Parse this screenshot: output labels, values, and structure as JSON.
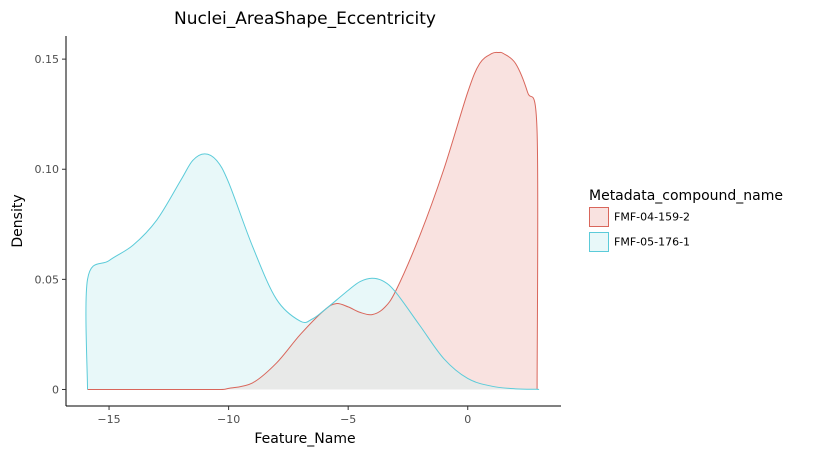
{
  "chart_data": {
    "type": "area",
    "title": "Nuclei_AreaShape_Eccentricity",
    "xlabel": "Feature_Name",
    "ylabel": "Density",
    "xlim": [
      -16.8,
      3.9
    ],
    "ylim": [
      -0.0075,
      0.1605
    ],
    "x_ticks": [
      -15,
      -10,
      -5,
      0
    ],
    "x_tick_labels": [
      "−15",
      "−10",
      "−5",
      "0"
    ],
    "y_ticks": [
      0,
      0.05,
      0.1,
      0.15
    ],
    "y_tick_labels": [
      "0",
      "0.05",
      "0.10",
      "0.15"
    ],
    "grid": false,
    "legend": {
      "title": "Metadata_compound_name",
      "position": "right"
    },
    "series": [
      {
        "name": "FMF-04-159-2",
        "color": "#d9665b",
        "fill": "#f9e2e0",
        "x": [
          -15.9,
          -12,
          -10.4,
          -10,
          -9,
          -8,
          -7,
          -6,
          -5.5,
          -5,
          -4.5,
          -4,
          -3.5,
          -3,
          -2,
          -1,
          0,
          0.5,
          1,
          1.3,
          1.5,
          2,
          2.5,
          2.9,
          2.9
        ],
        "y": [
          0,
          0,
          0,
          0.0005,
          0.003,
          0.012,
          0.025,
          0.036,
          0.039,
          0.0375,
          0.035,
          0.034,
          0.037,
          0.045,
          0.07,
          0.1,
          0.135,
          0.148,
          0.1525,
          0.153,
          0.1525,
          0.148,
          0.135,
          0.117,
          0
        ]
      },
      {
        "name": "FMF-05-176-1",
        "color": "#5bcbd9",
        "fill": "#e8f8f9",
        "x": [
          -15.9,
          -15.9,
          -15,
          -14,
          -13,
          -12,
          -11.5,
          -11,
          -10.5,
          -10,
          -9,
          -8,
          -7,
          -6.5,
          -6,
          -5,
          -4.5,
          -4,
          -3.5,
          -3,
          -2,
          -1,
          0,
          1,
          2,
          2.9,
          2.9
        ],
        "y": [
          0,
          0.05,
          0.0585,
          0.0655,
          0.077,
          0.095,
          0.104,
          0.107,
          0.104,
          0.094,
          0.065,
          0.041,
          0.031,
          0.032,
          0.036,
          0.045,
          0.049,
          0.0505,
          0.049,
          0.044,
          0.029,
          0.014,
          0.005,
          0.0015,
          0.0003,
          0.0001,
          0
        ]
      }
    ]
  }
}
